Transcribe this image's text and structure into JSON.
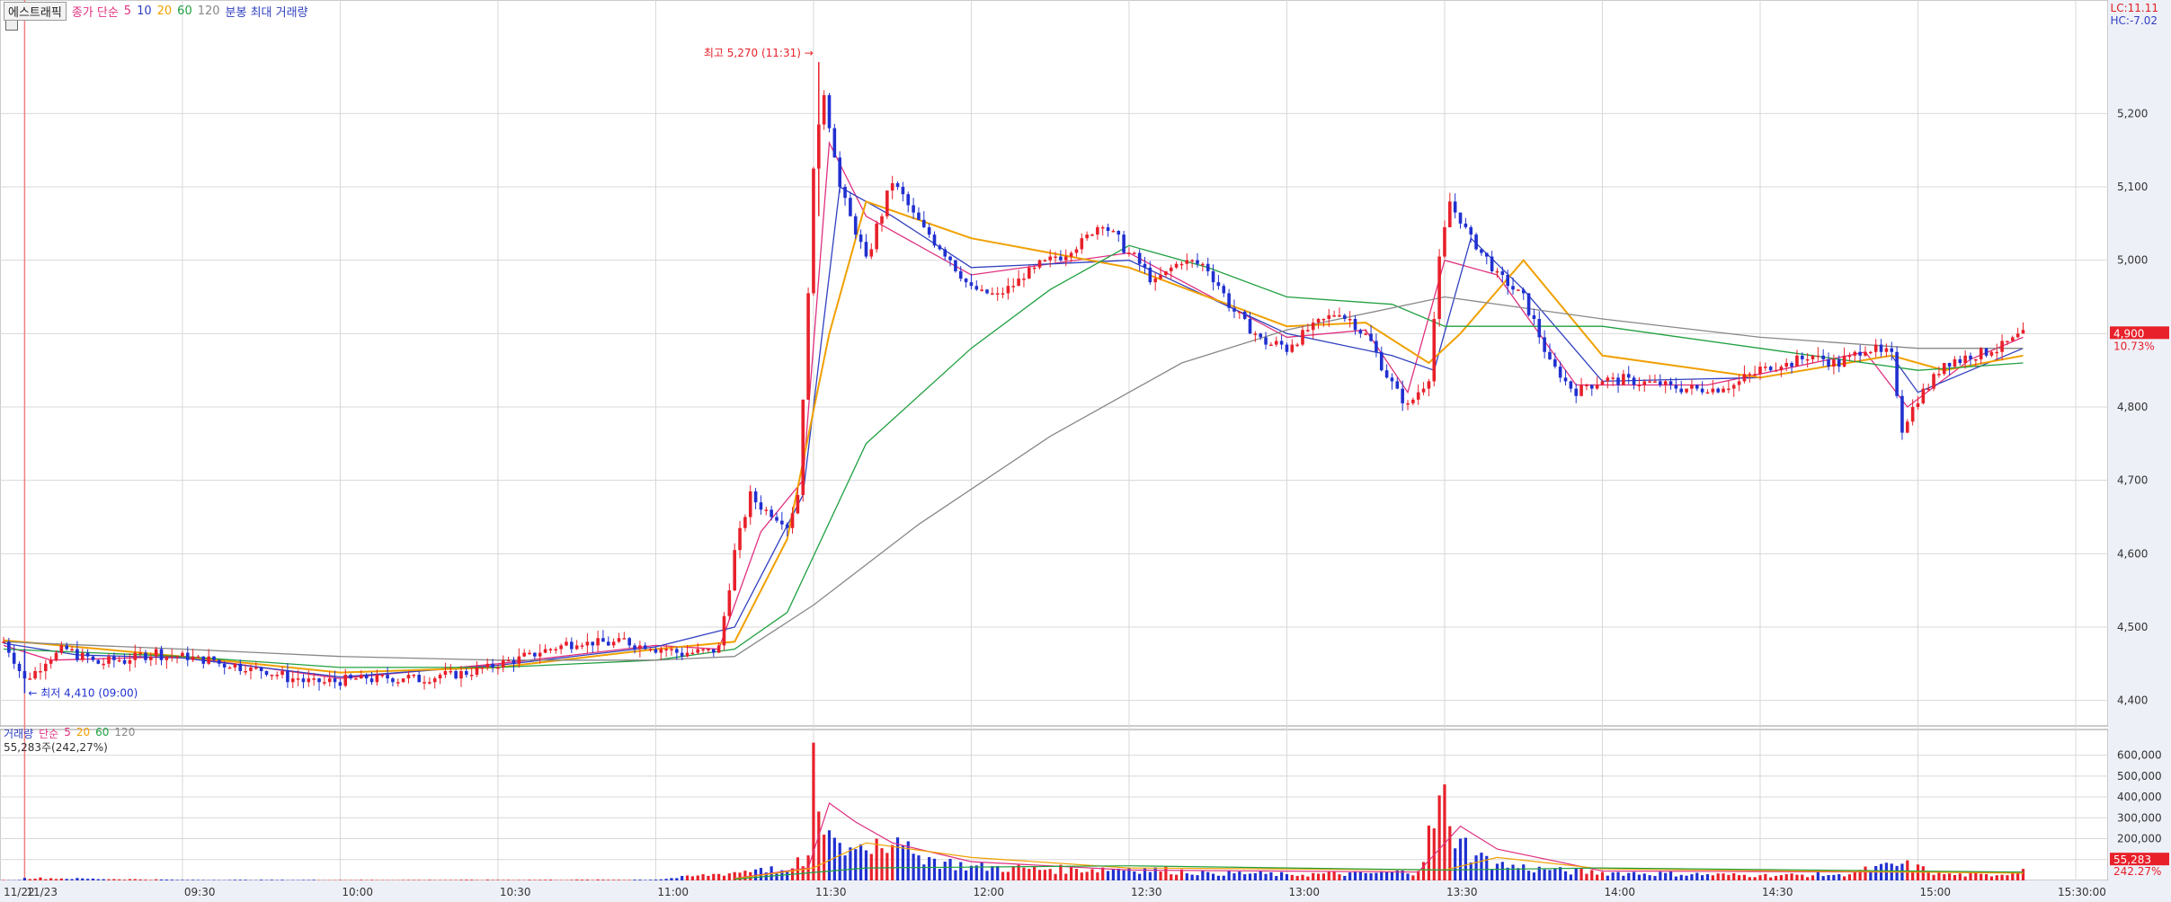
{
  "header": {
    "tab_name": "에스트래픽",
    "ma_label": "종가 단순",
    "ma_periods": [
      "5",
      "10",
      "20",
      "60",
      "120"
    ],
    "extra_label": "분봉 최대 거래량"
  },
  "corner": {
    "lc": "LC:11.11",
    "hc": "HC:-7.02"
  },
  "price_panel": {
    "current_price": "4,900",
    "current_change": "10.73%",
    "high_label": "최고 5,270 (11:31) →",
    "low_label": "← 최저 4,410 (09:00)"
  },
  "volume_panel": {
    "legend_name": "거래량",
    "ma_label": "단순",
    "ma_periods": [
      "5",
      "20",
      "60",
      "120"
    ],
    "info": "55,283주(242,27%)",
    "current_volume": "55,283",
    "current_ratio": "242.27%"
  },
  "colors": {
    "up": "#e8202a",
    "down": "#2030d0",
    "ma5": "#e0307f",
    "ma10": "#3040c0",
    "ma20": "#f0a000",
    "ma60": "#20a040",
    "ma120": "#888888",
    "grid": "#d8d8d8",
    "axis_bg": "#eef0f8"
  },
  "chart_data": [
    {
      "type": "candlestick",
      "title": "",
      "x_label": "",
      "y_label": "",
      "y_ticks": [
        "4,400",
        "4,500",
        "4,600",
        "4,700",
        "4,800",
        "4,900",
        "5,000",
        "5,100",
        "5,200"
      ],
      "ylim": [
        4380,
        5340
      ],
      "x_ticks": [
        "11/22",
        "11/23",
        "09:30",
        "10:00",
        "10:30",
        "11:00",
        "11:30",
        "12:00",
        "12:30",
        "13:00",
        "13:30",
        "14:00",
        "14:30",
        "15:00",
        "15:30:00"
      ],
      "x_tick_times": [
        null,
        "09:00",
        "09:30",
        "10:00",
        "10:30",
        "11:00",
        "11:30",
        "12:00",
        "12:30",
        "13:00",
        "13:30",
        "14:00",
        "14:30",
        "15:00",
        "15:30"
      ],
      "xlim": [
        "09:00",
        "15:30"
      ],
      "session_start": "09:00",
      "annotations": {
        "high": {
          "time": "11:31",
          "value": 5270
        },
        "low": {
          "time": "09:00",
          "value": 4410
        }
      },
      "key_closes": [
        {
          "t": "08:56",
          "v": 4480
        },
        {
          "t": "09:00",
          "v": 4430
        },
        {
          "t": "09:07",
          "v": 4470
        },
        {
          "t": "09:15",
          "v": 4450
        },
        {
          "t": "09:25",
          "v": 4465
        },
        {
          "t": "09:35",
          "v": 4455
        },
        {
          "t": "09:45",
          "v": 4440
        },
        {
          "t": "09:55",
          "v": 4425
        },
        {
          "t": "10:05",
          "v": 4430
        },
        {
          "t": "10:15",
          "v": 4430
        },
        {
          "t": "10:25",
          "v": 4440
        },
        {
          "t": "10:35",
          "v": 4460
        },
        {
          "t": "10:45",
          "v": 4480
        },
        {
          "t": "10:55",
          "v": 4480
        },
        {
          "t": "11:05",
          "v": 4465
        },
        {
          "t": "11:12",
          "v": 4470
        },
        {
          "t": "11:15",
          "v": 4600
        },
        {
          "t": "11:18",
          "v": 4680
        },
        {
          "t": "11:21",
          "v": 4660
        },
        {
          "t": "11:25",
          "v": 4640
        },
        {
          "t": "11:27",
          "v": 4680
        },
        {
          "t": "11:29",
          "v": 4950
        },
        {
          "t": "11:30",
          "v": 5130
        },
        {
          "t": "11:32",
          "v": 5230
        },
        {
          "t": "11:35",
          "v": 5100
        },
        {
          "t": "11:40",
          "v": 5000
        },
        {
          "t": "11:45",
          "v": 5110
        },
        {
          "t": "11:50",
          "v": 5050
        },
        {
          "t": "11:55",
          "v": 5010
        },
        {
          "t": "12:00",
          "v": 4960
        },
        {
          "t": "12:05",
          "v": 4950
        },
        {
          "t": "12:10",
          "v": 4980
        },
        {
          "t": "12:15",
          "v": 5000
        },
        {
          "t": "12:20",
          "v": 5020
        },
        {
          "t": "12:25",
          "v": 5050
        },
        {
          "t": "12:30",
          "v": 5010
        },
        {
          "t": "12:35",
          "v": 4970
        },
        {
          "t": "12:40",
          "v": 5000
        },
        {
          "t": "12:45",
          "v": 4990
        },
        {
          "t": "12:50",
          "v": 4930
        },
        {
          "t": "12:55",
          "v": 4890
        },
        {
          "t": "13:00",
          "v": 4880
        },
        {
          "t": "13:05",
          "v": 4910
        },
        {
          "t": "13:10",
          "v": 4930
        },
        {
          "t": "13:15",
          "v": 4900
        },
        {
          "t": "13:20",
          "v": 4830
        },
        {
          "t": "13:23",
          "v": 4800
        },
        {
          "t": "13:27",
          "v": 4840
        },
        {
          "t": "13:29",
          "v": 5000
        },
        {
          "t": "13:31",
          "v": 5080
        },
        {
          "t": "13:35",
          "v": 5030
        },
        {
          "t": "13:40",
          "v": 4980
        },
        {
          "t": "13:45",
          "v": 4950
        },
        {
          "t": "13:50",
          "v": 4860
        },
        {
          "t": "13:55",
          "v": 4820
        },
        {
          "t": "14:00",
          "v": 4840
        },
        {
          "t": "14:10",
          "v": 4830
        },
        {
          "t": "14:20",
          "v": 4825
        },
        {
          "t": "14:25",
          "v": 4830
        },
        {
          "t": "14:30",
          "v": 4850
        },
        {
          "t": "14:40",
          "v": 4870
        },
        {
          "t": "14:45",
          "v": 4860
        },
        {
          "t": "14:50",
          "v": 4880
        },
        {
          "t": "14:55",
          "v": 4870
        },
        {
          "t": "14:57",
          "v": 4770
        },
        {
          "t": "15:00",
          "v": 4810
        },
        {
          "t": "15:05",
          "v": 4860
        },
        {
          "t": "15:10",
          "v": 4870
        },
        {
          "t": "15:15",
          "v": 4880
        },
        {
          "t": "15:20",
          "v": 4900
        }
      ],
      "moving_averages": {
        "5": [
          {
            "t": "08:56",
            "v": 4475
          },
          {
            "t": "09:05",
            "v": 4455
          },
          {
            "t": "09:30",
            "v": 4460
          },
          {
            "t": "10:00",
            "v": 4430
          },
          {
            "t": "10:30",
            "v": 4450
          },
          {
            "t": "11:00",
            "v": 4475
          },
          {
            "t": "11:12",
            "v": 4470
          },
          {
            "t": "11:20",
            "v": 4630
          },
          {
            "t": "11:28",
            "v": 4700
          },
          {
            "t": "11:33",
            "v": 5160
          },
          {
            "t": "11:40",
            "v": 5060
          },
          {
            "t": "12:00",
            "v": 4980
          },
          {
            "t": "12:30",
            "v": 5010
          },
          {
            "t": "13:00",
            "v": 4895
          },
          {
            "t": "13:15",
            "v": 4905
          },
          {
            "t": "13:23",
            "v": 4820
          },
          {
            "t": "13:30",
            "v": 5000
          },
          {
            "t": "13:40",
            "v": 4980
          },
          {
            "t": "13:55",
            "v": 4830
          },
          {
            "t": "14:20",
            "v": 4830
          },
          {
            "t": "14:50",
            "v": 4875
          },
          {
            "t": "14:58",
            "v": 4800
          },
          {
            "t": "15:10",
            "v": 4865
          },
          {
            "t": "15:20",
            "v": 4895
          }
        ],
        "10": [
          {
            "t": "08:56",
            "v": 4478
          },
          {
            "t": "09:10",
            "v": 4462
          },
          {
            "t": "09:30",
            "v": 4458
          },
          {
            "t": "10:00",
            "v": 4432
          },
          {
            "t": "10:30",
            "v": 4448
          },
          {
            "t": "11:00",
            "v": 4473
          },
          {
            "t": "11:15",
            "v": 4500
          },
          {
            "t": "11:28",
            "v": 4680
          },
          {
            "t": "11:35",
            "v": 5100
          },
          {
            "t": "11:45",
            "v": 5060
          },
          {
            "t": "12:00",
            "v": 4990
          },
          {
            "t": "12:30",
            "v": 5000
          },
          {
            "t": "13:00",
            "v": 4900
          },
          {
            "t": "13:20",
            "v": 4870
          },
          {
            "t": "13:28",
            "v": 4850
          },
          {
            "t": "13:35",
            "v": 5030
          },
          {
            "t": "13:45",
            "v": 4960
          },
          {
            "t": "14:00",
            "v": 4835
          },
          {
            "t": "14:30",
            "v": 4840
          },
          {
            "t": "14:55",
            "v": 4870
          },
          {
            "t": "15:00",
            "v": 4820
          },
          {
            "t": "15:20",
            "v": 4880
          }
        ],
        "20": [
          {
            "t": "08:56",
            "v": 4482
          },
          {
            "t": "09:30",
            "v": 4460
          },
          {
            "t": "10:00",
            "v": 4438
          },
          {
            "t": "10:30",
            "v": 4445
          },
          {
            "t": "11:00",
            "v": 4470
          },
          {
            "t": "11:15",
            "v": 4480
          },
          {
            "t": "11:25",
            "v": 4620
          },
          {
            "t": "11:33",
            "v": 4900
          },
          {
            "t": "11:40",
            "v": 5080
          },
          {
            "t": "12:00",
            "v": 5030
          },
          {
            "t": "12:30",
            "v": 4990
          },
          {
            "t": "13:00",
            "v": 4910
          },
          {
            "t": "13:15",
            "v": 4915
          },
          {
            "t": "13:27",
            "v": 4860
          },
          {
            "t": "13:33",
            "v": 4900
          },
          {
            "t": "13:45",
            "v": 5000
          },
          {
            "t": "14:00",
            "v": 4870
          },
          {
            "t": "14:30",
            "v": 4840
          },
          {
            "t": "14:55",
            "v": 4870
          },
          {
            "t": "15:05",
            "v": 4850
          },
          {
            "t": "15:20",
            "v": 4870
          }
        ],
        "60": [
          {
            "t": "08:56",
            "v": 4470
          },
          {
            "t": "09:30",
            "v": 4460
          },
          {
            "t": "10:00",
            "v": 4445
          },
          {
            "t": "10:30",
            "v": 4445
          },
          {
            "t": "11:00",
            "v": 4455
          },
          {
            "t": "11:15",
            "v": 4470
          },
          {
            "t": "11:25",
            "v": 4520
          },
          {
            "t": "11:40",
            "v": 4750
          },
          {
            "t": "12:00",
            "v": 4880
          },
          {
            "t": "12:15",
            "v": 4960
          },
          {
            "t": "12:30",
            "v": 5020
          },
          {
            "t": "12:45",
            "v": 4990
          },
          {
            "t": "13:00",
            "v": 4950
          },
          {
            "t": "13:20",
            "v": 4940
          },
          {
            "t": "13:30",
            "v": 4910
          },
          {
            "t": "14:00",
            "v": 4910
          },
          {
            "t": "14:30",
            "v": 4880
          },
          {
            "t": "15:00",
            "v": 4850
          },
          {
            "t": "15:20",
            "v": 4860
          }
        ],
        "120": [
          {
            "t": "08:56",
            "v": 4480
          },
          {
            "t": "09:30",
            "v": 4470
          },
          {
            "t": "10:00",
            "v": 4460
          },
          {
            "t": "10:30",
            "v": 4455
          },
          {
            "t": "11:00",
            "v": 4455
          },
          {
            "t": "11:15",
            "v": 4460
          },
          {
            "t": "11:30",
            "v": 4530
          },
          {
            "t": "11:50",
            "v": 4640
          },
          {
            "t": "12:15",
            "v": 4760
          },
          {
            "t": "12:40",
            "v": 4860
          },
          {
            "t": "13:00",
            "v": 4905
          },
          {
            "t": "13:30",
            "v": 4950
          },
          {
            "t": "14:00",
            "v": 4920
          },
          {
            "t": "14:30",
            "v": 4895
          },
          {
            "t": "15:00",
            "v": 4880
          },
          {
            "t": "15:20",
            "v": 4880
          }
        ]
      }
    },
    {
      "type": "bar",
      "title": "",
      "y_ticks": [
        "100,000",
        "200,000",
        "300,000",
        "400,000",
        "500,000",
        "600,000"
      ],
      "ylim": [
        0,
        680000
      ],
      "key_volumes": [
        {
          "t": "09:00",
          "v": 12000
        },
        {
          "t": "09:30",
          "v": 3000
        },
        {
          "t": "10:00",
          "v": 2500
        },
        {
          "t": "10:30",
          "v": 3000
        },
        {
          "t": "11:00",
          "v": 4000
        },
        {
          "t": "11:15",
          "v": 40000
        },
        {
          "t": "11:20",
          "v": 60000
        },
        {
          "t": "11:25",
          "v": 45000
        },
        {
          "t": "11:29",
          "v": 120000
        },
        {
          "t": "11:30",
          "v": 660000
        },
        {
          "t": "11:31",
          "v": 330000
        },
        {
          "t": "11:33",
          "v": 240000
        },
        {
          "t": "11:35",
          "v": 180000
        },
        {
          "t": "11:38",
          "v": 150000
        },
        {
          "t": "11:42",
          "v": 200000
        },
        {
          "t": "11:45",
          "v": 170000
        },
        {
          "t": "11:50",
          "v": 120000
        },
        {
          "t": "11:55",
          "v": 90000
        },
        {
          "t": "12:00",
          "v": 70000
        },
        {
          "t": "12:15",
          "v": 55000
        },
        {
          "t": "12:30",
          "v": 60000
        },
        {
          "t": "12:45",
          "v": 40000
        },
        {
          "t": "13:00",
          "v": 30000
        },
        {
          "t": "13:15",
          "v": 35000
        },
        {
          "t": "13:25",
          "v": 45000
        },
        {
          "t": "13:30",
          "v": 460000
        },
        {
          "t": "13:31",
          "v": 260000
        },
        {
          "t": "13:33",
          "v": 200000
        },
        {
          "t": "13:36",
          "v": 120000
        },
        {
          "t": "13:40",
          "v": 80000
        },
        {
          "t": "13:50",
          "v": 50000
        },
        {
          "t": "14:00",
          "v": 40000
        },
        {
          "t": "14:20",
          "v": 30000
        },
        {
          "t": "14:30",
          "v": 25000
        },
        {
          "t": "14:45",
          "v": 30000
        },
        {
          "t": "14:57",
          "v": 80000
        },
        {
          "t": "15:05",
          "v": 30000
        },
        {
          "t": "15:15",
          "v": 25000
        },
        {
          "t": "15:20",
          "v": 55283
        }
      ],
      "moving_averages": {
        "5": [
          {
            "t": "11:15",
            "v": 10000
          },
          {
            "t": "11:29",
            "v": 60000
          },
          {
            "t": "11:33",
            "v": 370000
          },
          {
            "t": "11:38",
            "v": 280000
          },
          {
            "t": "11:45",
            "v": 180000
          },
          {
            "t": "12:00",
            "v": 90000
          },
          {
            "t": "12:30",
            "v": 50000
          },
          {
            "t": "13:25",
            "v": 40000
          },
          {
            "t": "13:33",
            "v": 260000
          },
          {
            "t": "13:40",
            "v": 150000
          },
          {
            "t": "14:00",
            "v": 45000
          },
          {
            "t": "14:57",
            "v": 40000
          },
          {
            "t": "15:20",
            "v": 40000
          }
        ],
        "20": [
          {
            "t": "11:15",
            "v": 8000
          },
          {
            "t": "11:30",
            "v": 60000
          },
          {
            "t": "11:40",
            "v": 180000
          },
          {
            "t": "12:00",
            "v": 110000
          },
          {
            "t": "12:30",
            "v": 60000
          },
          {
            "t": "13:30",
            "v": 50000
          },
          {
            "t": "13:40",
            "v": 110000
          },
          {
            "t": "14:00",
            "v": 55000
          },
          {
            "t": "15:20",
            "v": 35000
          }
        ],
        "60": [
          {
            "t": "11:15",
            "v": 6000
          },
          {
            "t": "11:40",
            "v": 60000
          },
          {
            "t": "12:30",
            "v": 70000
          },
          {
            "t": "13:30",
            "v": 50000
          },
          {
            "t": "14:00",
            "v": 60000
          },
          {
            "t": "15:20",
            "v": 40000
          }
        ]
      }
    }
  ]
}
